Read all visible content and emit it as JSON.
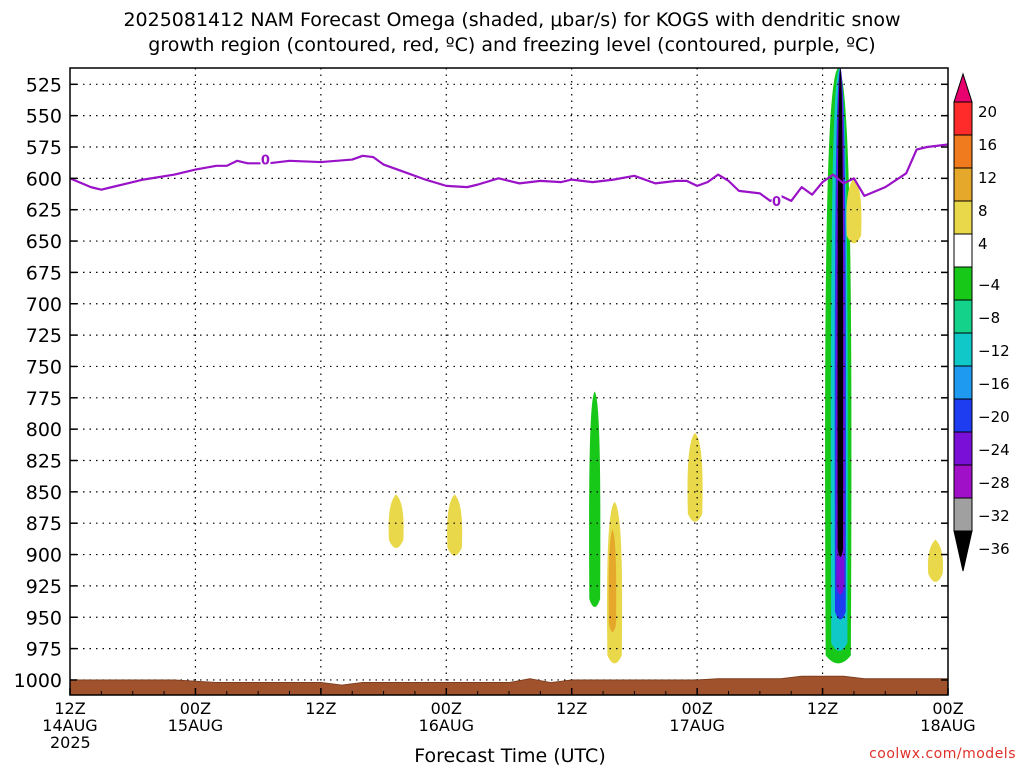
{
  "title": {
    "line1": "2025081412 NAM Forecast Omega (shaded, μbar/s) for KOGS with dendritic snow",
    "line2": "growth region (contoured, red, ºC) and freezing level (contoured, purple, ºC)"
  },
  "credit": "coolwx.com/models",
  "chart_data": {
    "type": "heatmap",
    "xlabel": "Forecast Time (UTC)",
    "ylabel": "",
    "x_ticks": [
      {
        "hour": 0,
        "lines": [
          "12Z",
          "14AUG",
          "2025"
        ]
      },
      {
        "hour": 12,
        "lines": [
          "00Z",
          "15AUG"
        ]
      },
      {
        "hour": 24,
        "lines": [
          "12Z"
        ]
      },
      {
        "hour": 36,
        "lines": [
          "00Z",
          "16AUG"
        ]
      },
      {
        "hour": 48,
        "lines": [
          "12Z"
        ]
      },
      {
        "hour": 60,
        "lines": [
          "00Z",
          "17AUG"
        ]
      },
      {
        "hour": 72,
        "lines": [
          "12Z"
        ]
      },
      {
        "hour": 84,
        "lines": [
          "00Z",
          "18AUG"
        ]
      }
    ],
    "xlim": [
      0,
      84
    ],
    "y_ticks": [
      525,
      550,
      575,
      600,
      625,
      650,
      675,
      700,
      725,
      750,
      775,
      800,
      825,
      850,
      875,
      900,
      925,
      950,
      975,
      1000
    ],
    "ylim": [
      1012,
      512
    ],
    "grid": true,
    "colorbar": {
      "labels": [
        "20",
        "16",
        "12",
        "8",
        "4",
        "−4",
        "−8",
        "−12",
        "−16",
        "−20",
        "−24",
        "−28",
        "−32",
        "−36"
      ],
      "colors": [
        "#e8006e",
        "#ff2a2a",
        "#f07a1e",
        "#e6a82a",
        "#e8d84a",
        "#ffffff",
        "#18c818",
        "#14d28a",
        "#10c8c8",
        "#1e9bf0",
        "#1e3cf0",
        "#7a10d8",
        "#a010c8",
        "#a0a0a0",
        "#000000"
      ]
    },
    "freezing_level": {
      "label": "0",
      "color": "#9a12c8",
      "hours": [
        0,
        2,
        3,
        4,
        7,
        10,
        12,
        14,
        15,
        16,
        17,
        19,
        21,
        24,
        27,
        28,
        29,
        30,
        32,
        34,
        36,
        38,
        39,
        41,
        43,
        45,
        47,
        48,
        50,
        52,
        54,
        56,
        58,
        59,
        60,
        61,
        62,
        63,
        64,
        66,
        67,
        68,
        69,
        70,
        71,
        72,
        73,
        74,
        75,
        76,
        78,
        80,
        81,
        82,
        84
      ],
      "pressures": [
        600,
        607,
        609,
        607,
        601,
        597,
        593,
        590,
        590,
        586,
        588,
        588,
        586,
        587,
        585,
        582,
        583,
        589,
        595,
        601,
        606,
        607,
        605,
        600,
        604,
        602,
        603,
        601,
        603,
        601,
        598,
        604,
        602,
        602,
        606,
        603,
        597,
        602,
        610,
        612,
        618,
        614,
        618,
        607,
        613,
        603,
        597,
        604,
        600,
        614,
        607,
        596,
        577,
        575,
        573
      ]
    },
    "omega_regions": [
      {
        "value": 4,
        "color": "#e8d84a",
        "hour": 31.2,
        "p_top": 852,
        "p_bot": 898
      },
      {
        "value": 4,
        "color": "#e8d84a",
        "hour": 36.8,
        "p_top": 852,
        "p_bot": 904
      },
      {
        "value": 4,
        "color": "#e8d84a",
        "hour": 52.1,
        "p_top": 858,
        "p_bot": 990
      },
      {
        "value": 8,
        "color": "#e6a82a",
        "hour": 51.9,
        "p_top": 880,
        "p_bot": 965
      },
      {
        "value": -4,
        "color": "#18c818",
        "hour": 50.2,
        "p_top": 770,
        "p_bot": 945
      },
      {
        "value": 4,
        "color": "#e8d84a",
        "hour": 59.8,
        "p_top": 803,
        "p_bot": 877
      },
      {
        "value": 4,
        "color": "#e8d84a",
        "hour": 82.8,
        "p_top": 888,
        "p_bot": 925
      },
      {
        "value": -4,
        "color": "#18c818",
        "hour": 73.5,
        "p_top": 512,
        "p_bot": 990
      },
      {
        "value": -12,
        "color": "#10c8c8",
        "hour": 73.6,
        "p_top": 512,
        "p_bot": 980
      },
      {
        "value": -20,
        "color": "#1e3cf0",
        "hour": 73.7,
        "p_top": 512,
        "p_bot": 955
      },
      {
        "value": -28,
        "color": "#7a10d8",
        "hour": 73.7,
        "p_top": 512,
        "p_bot": 935
      },
      {
        "value": -36,
        "color": "#000000",
        "hour": 73.7,
        "p_top": 512,
        "p_bot": 905
      },
      {
        "value": 4,
        "color": "#e8d84a",
        "hour": 75.0,
        "p_top": 600,
        "p_bot": 655
      }
    ],
    "ground_color": "#a0522d"
  }
}
